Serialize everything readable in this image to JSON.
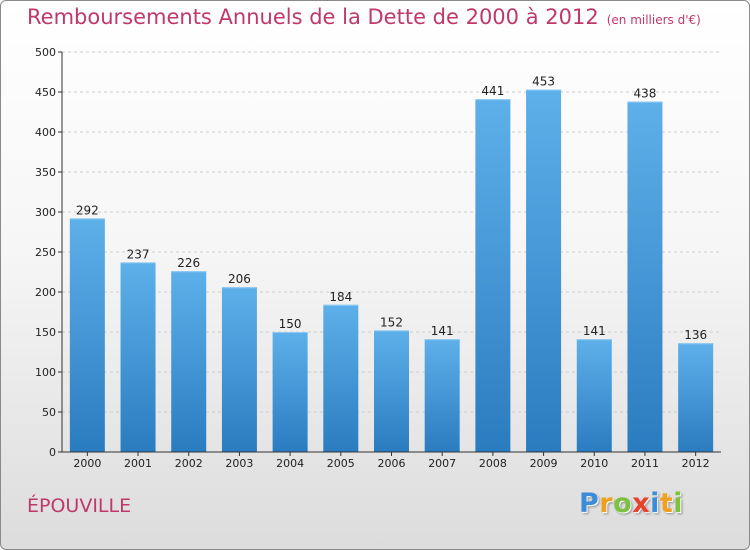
{
  "chart_data": {
    "type": "bar",
    "title": "Remboursements Annuels de la Dette de 2000 à 2012",
    "unit": "(en milliers d'€)",
    "categories": [
      "2000",
      "2001",
      "2002",
      "2003",
      "2004",
      "2005",
      "2006",
      "2007",
      "2008",
      "2009",
      "2010",
      "2011",
      "2012"
    ],
    "values": [
      292,
      237,
      226,
      206,
      150,
      184,
      152,
      141,
      441,
      453,
      141,
      438,
      136
    ],
    "ylim": [
      0,
      500
    ],
    "yticks": [
      0,
      50,
      100,
      150,
      200,
      250,
      300,
      350,
      400,
      450,
      500
    ],
    "grid": true,
    "bar_color": "#4a9fdf"
  },
  "commune": "ÉPOUVILLE",
  "logo": {
    "letters": [
      "P",
      "r",
      "o",
      "x",
      "i",
      "t",
      "i"
    ],
    "colors": [
      "#3c8dd8",
      "#f0a020",
      "#7cc142",
      "#e8412c",
      "#3c8dd8",
      "#f0a020",
      "#7cc142"
    ]
  }
}
